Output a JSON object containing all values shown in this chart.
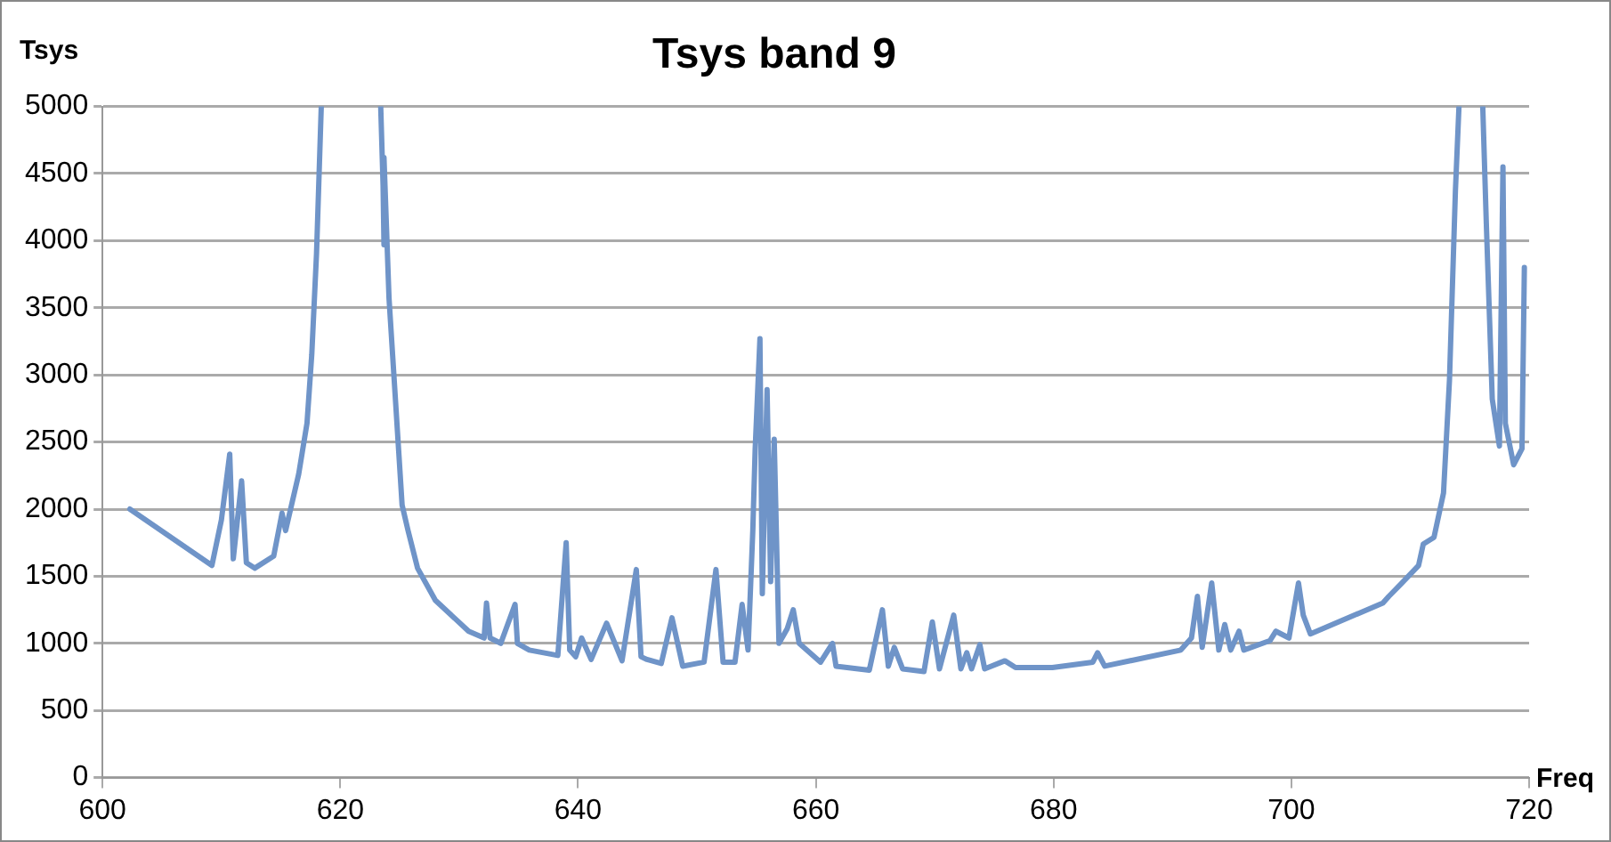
{
  "chart_data": {
    "type": "line",
    "title": "Tsys band 9",
    "xlabel": "Freq",
    "ylabel": "Tsys",
    "x": [
      602.3,
      609.2,
      610.0,
      610.7,
      611.0,
      611.7,
      612.1,
      612.8,
      614.4,
      615.1,
      615.4,
      616.5,
      617.2,
      617.6,
      618.0,
      618.4,
      620.9,
      623.4,
      623.6,
      623.65,
      623.7,
      624.1,
      624.7,
      625.2,
      625.7,
      626.5,
      628.0,
      630.8,
      632.1,
      632.3,
      632.6,
      633.5,
      634.7,
      634.9,
      635.9,
      638.3,
      639.0,
      639.3,
      639.8,
      640.3,
      641.1,
      642.4,
      643.7,
      644.9,
      645.3,
      645.8,
      647.0,
      647.9,
      648.8,
      650.6,
      651.6,
      652.2,
      653.2,
      653.8,
      654.3,
      654.7,
      654.9,
      655.3,
      655.5,
      655.9,
      656.2,
      656.5,
      656.9,
      657.6,
      658.1,
      658.6,
      660.4,
      661.4,
      661.7,
      664.5,
      665.6,
      666.1,
      666.6,
      667.3,
      669.1,
      669.8,
      670.4,
      671.6,
      672.2,
      672.7,
      673.1,
      673.8,
      674.2,
      675.9,
      676.8,
      679.9,
      683.3,
      683.7,
      684.3,
      690.7,
      691.6,
      692.1,
      692.5,
      693.3,
      693.9,
      694.4,
      694.9,
      695.6,
      696.0,
      698.2,
      698.7,
      699.8,
      700.6,
      701.0,
      701.6,
      707.7,
      708.2,
      709.2,
      710.7,
      711.1,
      712.0,
      712.8,
      713.3,
      713.8,
      714.1,
      715.1,
      716.1,
      716.4,
      716.9,
      717.5,
      717.8,
      718.0,
      718.7,
      719.4,
      719.6
    ],
    "values": [
      2000,
      1580,
      1920,
      2410,
      1630,
      2210,
      1600,
      1560,
      1650,
      1970,
      1840,
      2260,
      2640,
      3150,
      3900,
      5000,
      null,
      5000,
      4410,
      3970,
      4620,
      3570,
      2730,
      2030,
      1840,
      1560,
      1320,
      1090,
      1040,
      1300,
      1040,
      1000,
      1290,
      1000,
      950,
      910,
      1750,
      950,
      900,
      1040,
      880,
      1150,
      870,
      1550,
      900,
      880,
      850,
      1190,
      830,
      860,
      1550,
      860,
      860,
      1290,
      950,
      1840,
      2450,
      3270,
      1370,
      2890,
      1460,
      2520,
      1000,
      1110,
      1250,
      1000,
      860,
      1000,
      830,
      800,
      1250,
      830,
      970,
      810,
      790,
      1160,
      810,
      1210,
      810,
      930,
      810,
      990,
      810,
      870,
      820,
      820,
      860,
      930,
      830,
      950,
      1040,
      1350,
      970,
      1450,
      950,
      1140,
      950,
      1090,
      950,
      1020,
      1090,
      1040,
      1450,
      1210,
      1070,
      1300,
      1350,
      1440,
      1580,
      1740,
      1790,
      2120,
      2960,
      4370,
      5000,
      null,
      5000,
      4130,
      2820,
      2470,
      4550,
      2640,
      2330,
      2450,
      3800
    ],
    "color": "#6f94c8",
    "xlim": [
      600,
      720
    ],
    "ylim": [
      0,
      5000
    ],
    "xticks": [
      600,
      620,
      640,
      660,
      680,
      700,
      720
    ],
    "yticks": [
      0,
      500,
      1000,
      1500,
      2000,
      2500,
      3000,
      3500,
      4000,
      4500,
      5000
    ],
    "grid": "y",
    "legend": false,
    "marker": "none",
    "line_style": "solid"
  }
}
